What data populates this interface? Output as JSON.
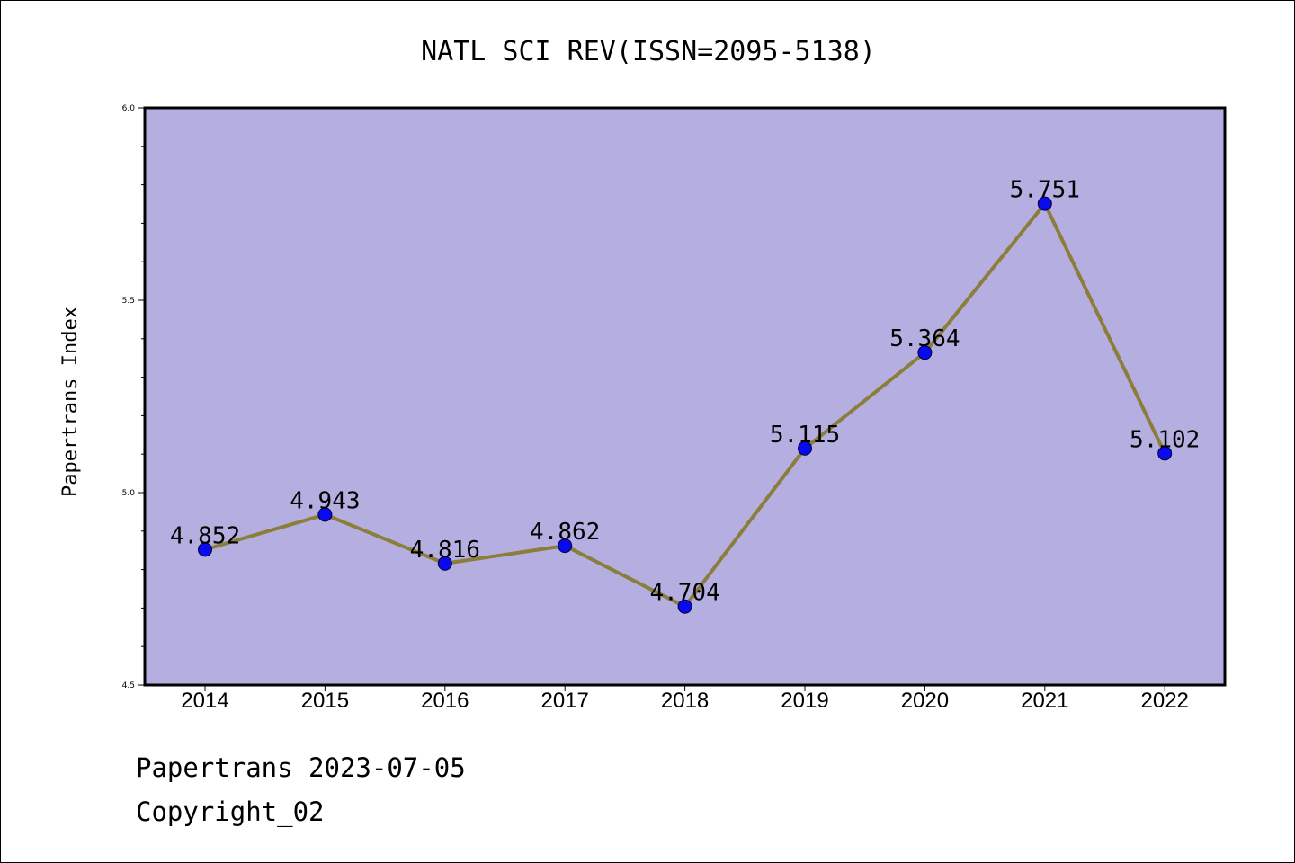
{
  "chart_data": {
    "type": "line",
    "title": "NATL SCI REV(ISSN=2095-5138)",
    "xlabel": "",
    "ylabel": "Papertrans Index",
    "categories": [
      "2014",
      "2015",
      "2016",
      "2017",
      "2018",
      "2019",
      "2020",
      "2021",
      "2022"
    ],
    "values": [
      4.852,
      4.943,
      4.816,
      4.862,
      4.704,
      5.115,
      5.364,
      5.751,
      5.102
    ],
    "value_labels": [
      "4.852",
      "4.943",
      "4.816",
      "4.862",
      "4.704",
      "5.115",
      "5.364",
      "5.751",
      "5.102"
    ],
    "ylim": [
      4.5,
      6.0
    ],
    "yticks": [
      "4.5",
      "5.0",
      "5.5",
      "6.0"
    ],
    "grid": false,
    "legend": "none",
    "colors": {
      "plot_background": "#b5aee1",
      "line": "#8b7d3a",
      "marker": "#0a0aee"
    }
  },
  "footer": {
    "line1": "Papertrans 2023-07-05",
    "line2": "Copyright_02"
  }
}
